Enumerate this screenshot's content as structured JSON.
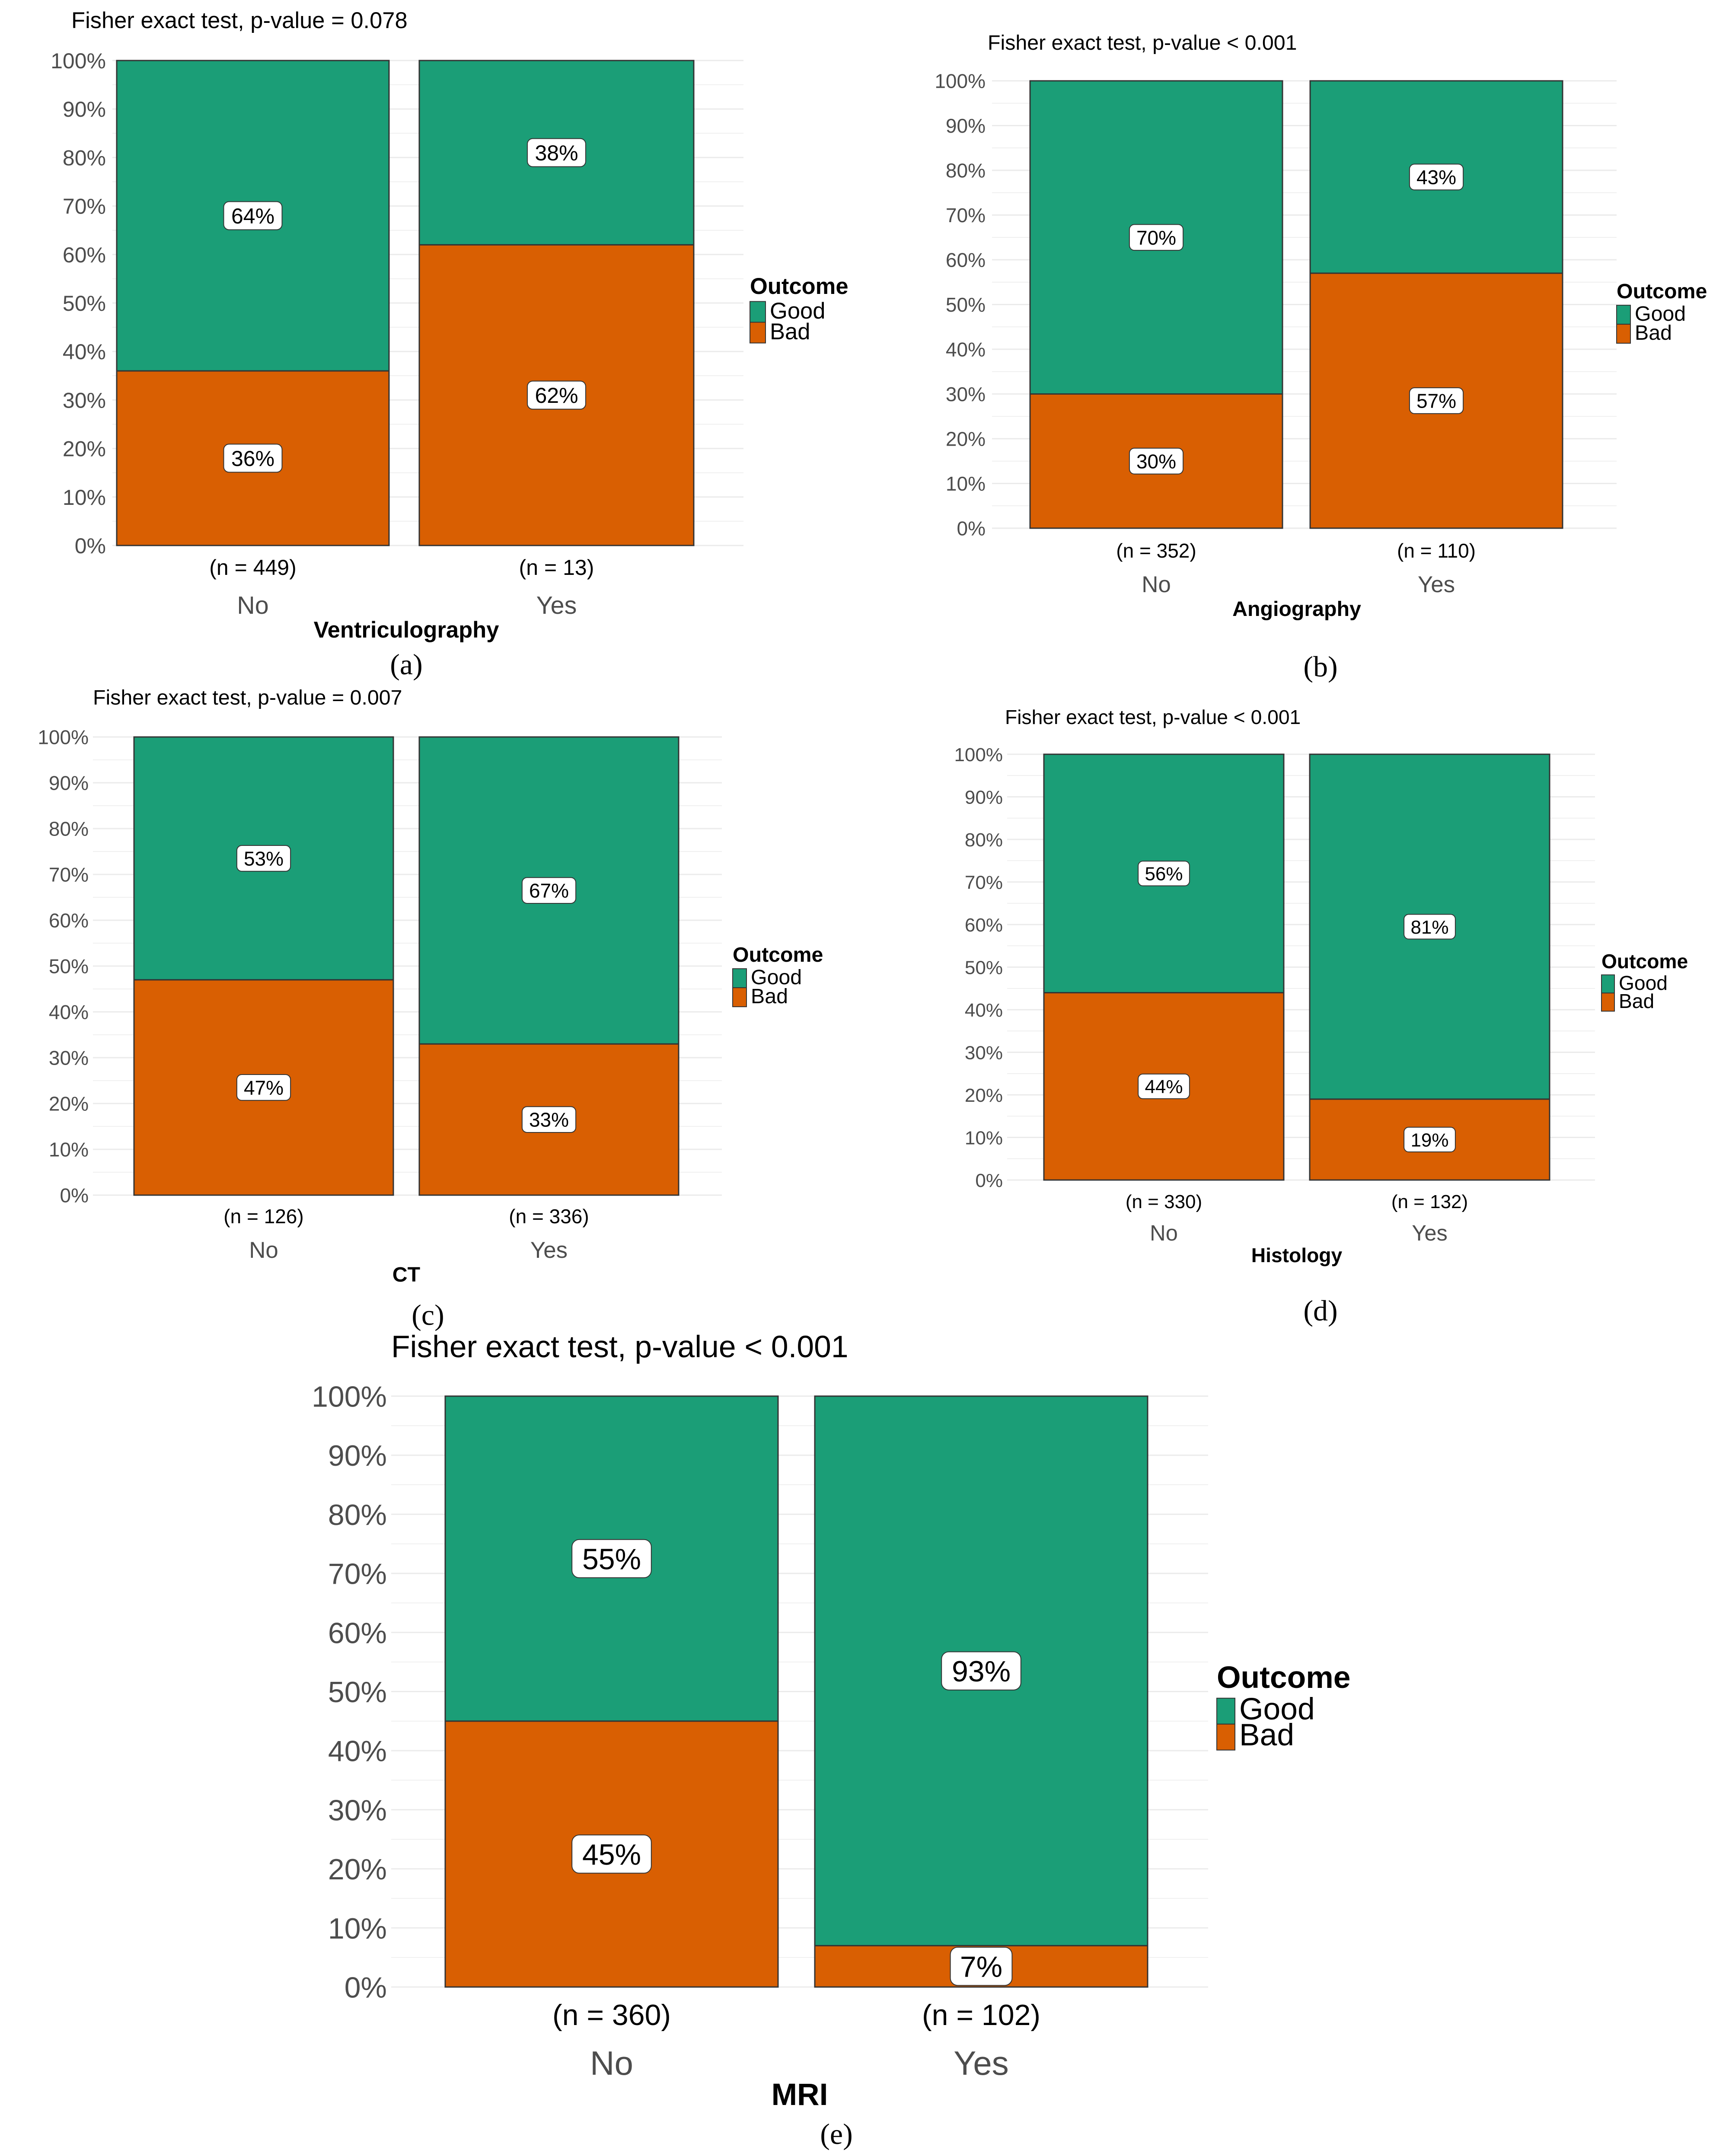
{
  "colors": {
    "good": "#1b9e77",
    "bad": "#d95f02",
    "grid": "#ebebeb",
    "text": "#000000",
    "tick_text": "#4d4d4d"
  },
  "legend": {
    "title": "Outcome",
    "good_label": "Good",
    "bad_label": "Bad"
  },
  "chart_data": [
    {
      "id": "a",
      "type": "bar",
      "stacked": true,
      "title": "Fisher exact test, p-value = 0.078",
      "xlabel": "Ventriculography",
      "ylabel": "",
      "caption": "(a)",
      "ylim": [
        0,
        100
      ],
      "yticks": [
        "0%",
        "10%",
        "20%",
        "30%",
        "40%",
        "50%",
        "60%",
        "70%",
        "80%",
        "90%",
        "100%"
      ],
      "categories": [
        "No",
        "Yes"
      ],
      "n_labels": [
        "(n = 449)",
        "(n = 13)"
      ],
      "series": [
        {
          "name": "Bad",
          "values": [
            36,
            62
          ],
          "labels": [
            "36%",
            "62%"
          ]
        },
        {
          "name": "Good",
          "values": [
            64,
            38
          ],
          "labels": [
            "64%",
            "38%"
          ]
        }
      ],
      "legend_position": "right"
    },
    {
      "id": "b",
      "type": "bar",
      "stacked": true,
      "title": "Fisher exact test, p-value < 0.001",
      "xlabel": "Angiography",
      "ylabel": "",
      "caption": "(b)",
      "ylim": [
        0,
        100
      ],
      "yticks": [
        "0%",
        "10%",
        "20%",
        "30%",
        "40%",
        "50%",
        "60%",
        "70%",
        "80%",
        "90%",
        "100%"
      ],
      "categories": [
        "No",
        "Yes"
      ],
      "n_labels": [
        "(n = 352)",
        "(n = 110)"
      ],
      "series": [
        {
          "name": "Bad",
          "values": [
            30,
            57
          ],
          "labels": [
            "30%",
            "57%"
          ]
        },
        {
          "name": "Good",
          "values": [
            70,
            43
          ],
          "labels": [
            "70%",
            "43%"
          ]
        }
      ],
      "legend_position": "right"
    },
    {
      "id": "c",
      "type": "bar",
      "stacked": true,
      "title": "Fisher exact test, p-value = 0.007",
      "xlabel": "CT",
      "ylabel": "",
      "caption": "(c)",
      "ylim": [
        0,
        100
      ],
      "yticks": [
        "0%",
        "10%",
        "20%",
        "30%",
        "40%",
        "50%",
        "60%",
        "70%",
        "80%",
        "90%",
        "100%"
      ],
      "categories": [
        "No",
        "Yes"
      ],
      "n_labels": [
        "(n = 126)",
        "(n = 336)"
      ],
      "series": [
        {
          "name": "Bad",
          "values": [
            47,
            33
          ],
          "labels": [
            "47%",
            "33%"
          ]
        },
        {
          "name": "Good",
          "values": [
            53,
            67
          ],
          "labels": [
            "53%",
            "67%"
          ]
        }
      ],
      "legend_position": "right"
    },
    {
      "id": "d",
      "type": "bar",
      "stacked": true,
      "title": "Fisher exact test, p-value < 0.001",
      "xlabel": "Histology",
      "ylabel": "",
      "caption": "(d)",
      "ylim": [
        0,
        100
      ],
      "yticks": [
        "0%",
        "10%",
        "20%",
        "30%",
        "40%",
        "50%",
        "60%",
        "70%",
        "80%",
        "90%",
        "100%"
      ],
      "categories": [
        "No",
        "Yes"
      ],
      "n_labels": [
        "(n = 330)",
        "(n = 132)"
      ],
      "series": [
        {
          "name": "Bad",
          "values": [
            44,
            19
          ],
          "labels": [
            "44%",
            "19%"
          ]
        },
        {
          "name": "Good",
          "values": [
            56,
            81
          ],
          "labels": [
            "56%",
            "81%"
          ]
        }
      ],
      "legend_position": "right"
    },
    {
      "id": "e",
      "type": "bar",
      "stacked": true,
      "title": "Fisher exact test, p-value < 0.001",
      "xlabel": "MRI",
      "ylabel": "",
      "caption": "(e)",
      "ylim": [
        0,
        100
      ],
      "yticks": [
        "0%",
        "10%",
        "20%",
        "30%",
        "40%",
        "50%",
        "60%",
        "70%",
        "80%",
        "90%",
        "100%"
      ],
      "categories": [
        "No",
        "Yes"
      ],
      "n_labels": [
        "(n = 360)",
        "(n = 102)"
      ],
      "series": [
        {
          "name": "Bad",
          "values": [
            45,
            7
          ],
          "labels": [
            "45%",
            "7%"
          ]
        },
        {
          "name": "Good",
          "values": [
            55,
            93
          ],
          "labels": [
            "55%",
            "93%"
          ]
        }
      ],
      "legend_position": "right"
    }
  ]
}
